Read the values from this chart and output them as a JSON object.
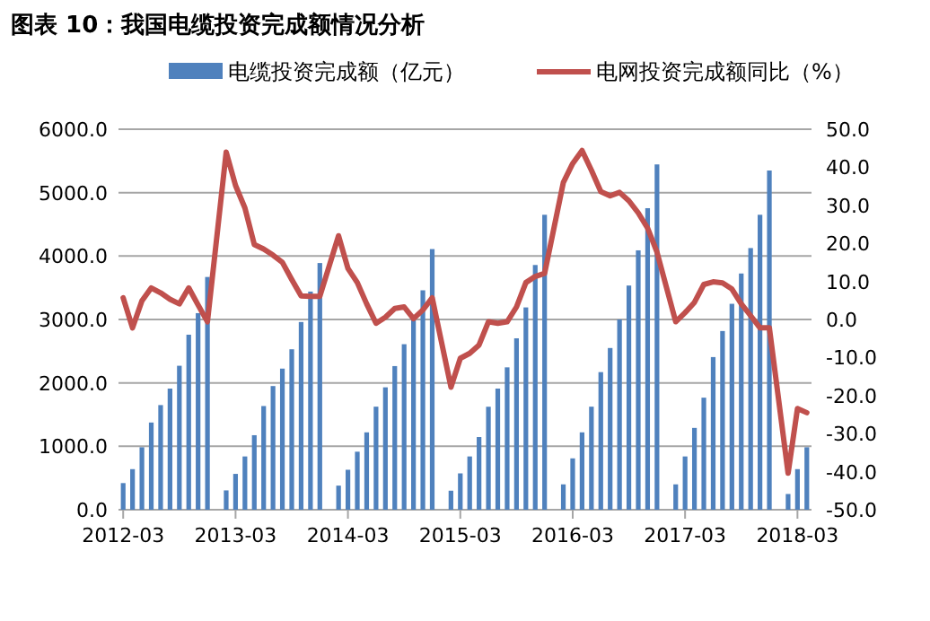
{
  "chart_data": {
    "type": "bar",
    "title": "图表 10：我国电缆投资完成额情况分析",
    "categories": [
      "2012-03",
      null,
      null,
      null,
      null,
      null,
      null,
      null,
      null,
      null,
      null,
      null,
      "2013-03",
      null,
      null,
      null,
      null,
      null,
      null,
      null,
      null,
      null,
      null,
      null,
      "2014-03",
      null,
      null,
      null,
      null,
      null,
      null,
      null,
      null,
      null,
      null,
      null,
      "2015-03",
      null,
      null,
      null,
      null,
      null,
      null,
      null,
      null,
      null,
      null,
      null,
      "2016-03",
      null,
      null,
      null,
      null,
      null,
      null,
      null,
      null,
      null,
      null,
      null,
      "2017-03",
      null,
      null,
      null,
      null,
      null,
      null,
      null,
      null,
      null,
      null,
      null,
      "2018-03",
      null
    ],
    "series": [
      {
        "name": "电缆投资完成额（亿元）",
        "color": "#4f81bd",
        "values": [
          420,
          640,
          985,
          1375,
          1650,
          1910,
          2270,
          2760,
          3100,
          3670,
          null,
          305,
          565,
          840,
          1175,
          1635,
          1950,
          2225,
          2530,
          2960,
          3440,
          3890,
          null,
          380,
          630,
          915,
          1220,
          1625,
          1930,
          2265,
          2610,
          3010,
          3460,
          4110,
          null,
          300,
          573,
          840,
          1146,
          1624,
          1910,
          2245,
          2703,
          3190,
          3859,
          4651,
          null,
          400,
          810,
          1220,
          1625,
          2170,
          2550,
          3000,
          3535,
          4090,
          4755,
          5445,
          null,
          400,
          840,
          1290,
          1767,
          2407,
          2818,
          3247,
          3725,
          4126,
          4651,
          5349,
          null,
          248,
          640,
          985
        ]
      },
      {
        "name": "电网投资完成额同比（%）",
        "type": "line",
        "axis": "y2",
        "color": "#c0504d",
        "values": [
          5.7,
          -2.2,
          4.9,
          8.3,
          7.0,
          5.3,
          4.1,
          8.3,
          3.8,
          -0.6,
          null,
          44.0,
          35.2,
          29.3,
          19.7,
          18.5,
          16.9,
          15.0,
          10.5,
          6.2,
          6.1,
          6.1,
          null,
          22.0,
          13.4,
          9.7,
          4.1,
          -1.0,
          0.6,
          2.9,
          3.3,
          0.2,
          2.5,
          5.7,
          null,
          -17.8,
          -10.2,
          -8.9,
          -6.7,
          -0.6,
          -1.0,
          -0.6,
          3.3,
          9.7,
          11.3,
          12.1,
          null,
          36.0,
          41.0,
          44.4,
          39.2,
          33.6,
          32.5,
          33.4,
          31.2,
          28.0,
          24.0,
          17.7,
          null,
          -0.6,
          1.8,
          4.5,
          9.2,
          9.9,
          9.6,
          8.0,
          4.1,
          1.0,
          -2.2,
          -2.2,
          null,
          -40.4,
          -23.4,
          -24.5
        ]
      }
    ],
    "ylim": [
      0,
      6000
    ],
    "yticks": [
      {
        "value": 0,
        "label": "0.0"
      },
      {
        "value": 1000,
        "label": "1000.0"
      },
      {
        "value": 2000,
        "label": "2000.0"
      },
      {
        "value": 3000,
        "label": "3000.0"
      },
      {
        "value": 4000,
        "label": "4000.0"
      },
      {
        "value": 5000,
        "label": "5000.0"
      },
      {
        "value": 6000,
        "label": "6000.0"
      }
    ],
    "y2lim": [
      -50,
      50
    ],
    "y2ticks": [
      {
        "value": -50,
        "label": "-50.0"
      },
      {
        "value": -40,
        "label": "-40.0"
      },
      {
        "value": -30,
        "label": "-30.0"
      },
      {
        "value": -20,
        "label": "-20.0"
      },
      {
        "value": -10,
        "label": "-10.0"
      },
      {
        "value": 0,
        "label": "0.0"
      },
      {
        "value": 10,
        "label": "10.0"
      },
      {
        "value": 20,
        "label": "20.0"
      },
      {
        "value": 30,
        "label": "30.0"
      },
      {
        "value": 40,
        "label": "40.0"
      },
      {
        "value": 50,
        "label": "50.0"
      }
    ],
    "grid": "y",
    "legend": "top"
  }
}
